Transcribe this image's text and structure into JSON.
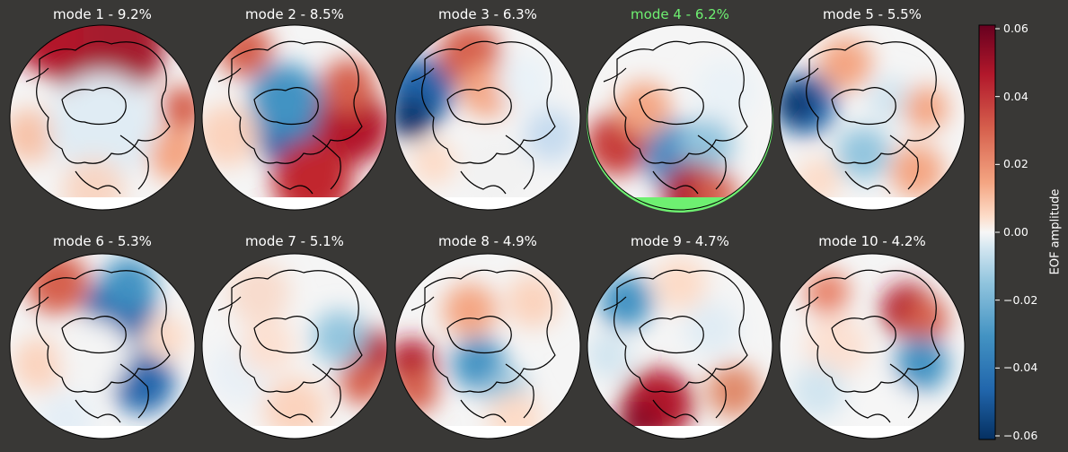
{
  "panels": [
    {
      "title": "mode 1 - 9.2%",
      "highlighted": false
    },
    {
      "title": "mode 2 - 8.5%",
      "highlighted": false
    },
    {
      "title": "mode 3 - 6.3%",
      "highlighted": false
    },
    {
      "title": "mode 4 - 6.2%",
      "highlighted": true
    },
    {
      "title": "mode 5 - 5.5%",
      "highlighted": false
    },
    {
      "title": "mode 6 - 5.3%",
      "highlighted": false
    },
    {
      "title": "mode 7 - 5.1%",
      "highlighted": false
    },
    {
      "title": "mode 8 - 4.9%",
      "highlighted": false
    },
    {
      "title": "mode 9 - 4.7%",
      "highlighted": false
    },
    {
      "title": "mode 10 - 4.2%",
      "highlighted": false
    }
  ],
  "colorbar": {
    "label": "EOF amplitude",
    "ticks": [
      "0.06",
      "0.04",
      "0.02",
      "0.00",
      "−0.02",
      "−0.04",
      "−0.06"
    ],
    "colormap": "RdBu_r",
    "range": [
      -0.06,
      0.06
    ]
  },
  "colors": {
    "background": "#393836",
    "highlight": "#6ef071",
    "coastline": "#000000"
  }
}
